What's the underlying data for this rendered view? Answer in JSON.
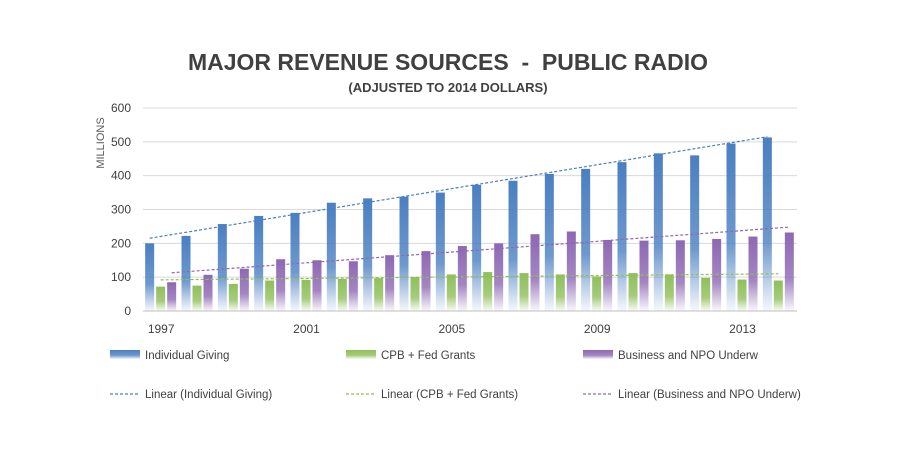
{
  "chart_data": {
    "type": "bar",
    "title": "MAJOR REVENUE SOURCES  -  PUBLIC RADIO",
    "subtitle": "(ADJUSTED TO 2014 DOLLARS)",
    "ylabel": "MILLIONS",
    "xlabel": "",
    "ylim": [
      0,
      600
    ],
    "yticks": [
      0,
      100,
      200,
      300,
      400,
      500,
      600
    ],
    "grid": true,
    "legend_position": "bottom",
    "categories": [
      "1997",
      "1998",
      "1999",
      "2000",
      "2001",
      "2002",
      "2003",
      "2004",
      "2005",
      "2006",
      "2007",
      "2008",
      "2009",
      "2010",
      "2011",
      "2012",
      "2013",
      "2014"
    ],
    "xtick_labels": [
      "1997",
      "2001",
      "2005",
      "2009",
      "2013"
    ],
    "series": [
      {
        "name": "Individual Giving",
        "color": "#4a7fc1",
        "values": [
          200,
          222,
          257,
          281,
          290,
          320,
          333,
          338,
          350,
          373,
          385,
          405,
          420,
          440,
          466,
          460,
          495,
          513
        ]
      },
      {
        "name": "CPB + Fed Grants",
        "color": "#8fbf5a",
        "values": [
          72,
          75,
          80,
          90,
          92,
          95,
          97,
          100,
          108,
          115,
          112,
          108,
          102,
          112,
          108,
          98,
          93,
          90
        ]
      },
      {
        "name": "Business and NPO Underw",
        "color": "#8e68b3",
        "values": [
          85,
          107,
          125,
          153,
          150,
          147,
          165,
          177,
          192,
          200,
          227,
          235,
          210,
          208,
          209,
          213,
          220,
          232
        ]
      }
    ],
    "trendlines": [
      {
        "name": "Linear (Individual Giving)",
        "color": "#4a7fc1",
        "start": 215,
        "end": 515
      },
      {
        "name": "Linear (CPB + Fed Grants)",
        "color": "#8fbf5a",
        "start": 92,
        "end": 110
      },
      {
        "name": "Linear (Business and NPO Underw)",
        "color": "#8e68b3",
        "start": 113,
        "end": 248
      }
    ]
  }
}
